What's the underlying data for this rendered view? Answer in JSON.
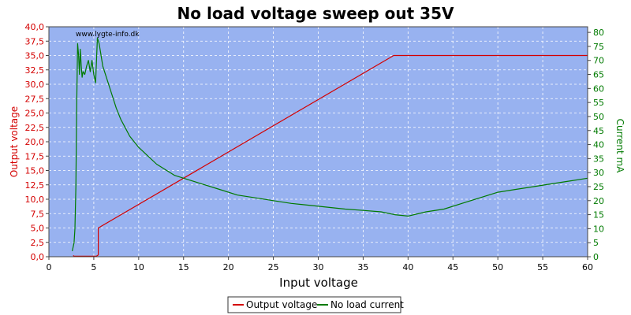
{
  "chart_data": {
    "type": "line",
    "title": "No load voltage sweep out 35V",
    "watermark": "www.lygte-info.dk",
    "xlabel": "Input voltage",
    "ylabel_left": "Output voltage",
    "ylabel_right": "Current mA",
    "xlim": [
      0,
      60
    ],
    "ylim_left": [
      0,
      40
    ],
    "ylim_right": [
      0,
      82
    ],
    "x_ticks": [
      "0",
      "5",
      "10",
      "15",
      "20",
      "25",
      "30",
      "35",
      "40",
      "45",
      "50",
      "55",
      "60"
    ],
    "y_left_ticks": [
      "0,0",
      "2,5",
      "5,0",
      "7,5",
      "10,0",
      "12,5",
      "15,0",
      "17,5",
      "20,0",
      "22,5",
      "25,0",
      "27,5",
      "30,0",
      "32,5",
      "35,0",
      "37,5",
      "40,0"
    ],
    "y_right_ticks": [
      "0",
      "5",
      "10",
      "15",
      "20",
      "25",
      "30",
      "35",
      "40",
      "45",
      "50",
      "55",
      "60",
      "65",
      "70",
      "75",
      "80"
    ],
    "grid": true,
    "legend_position": "bottom-center",
    "colors": {
      "plot_bg": "#98b2f0",
      "grid": "#ffffff",
      "voltage": "#d40000",
      "current": "#007a00",
      "left_axis": "#d40000",
      "right_axis": "#007a00"
    },
    "series": [
      {
        "name": "Output voltage",
        "axis": "left",
        "x": [
          2.7,
          2.8,
          5.3,
          5.5,
          5.5,
          38.4,
          60
        ],
        "y": [
          0.2,
          0.1,
          0.1,
          0.3,
          5.0,
          35.0,
          35.0
        ]
      },
      {
        "name": "No load current",
        "axis": "right",
        "x": [
          2.6,
          2.8,
          2.9,
          3.0,
          3.1,
          3.2,
          3.3,
          3.4,
          3.5,
          3.6,
          3.7,
          3.8,
          4.0,
          4.2,
          4.4,
          4.6,
          4.8,
          5.0,
          5.2,
          5.4,
          5.6,
          5.8,
          6.0,
          6.5,
          7.0,
          7.5,
          8.0,
          8.5,
          9.0,
          10.0,
          11.0,
          12.0,
          13.0,
          14.0,
          15.0,
          17.0,
          19.0,
          21.0,
          23.0,
          25.0,
          27.0,
          30.0,
          33.0,
          35.0,
          37.0,
          38.5,
          40.0,
          42.0,
          44.0,
          46.0,
          48.0,
          50.0,
          52.0,
          54.0,
          56.0,
          58.0,
          60.0
        ],
        "y": [
          2,
          5,
          10,
          25,
          55,
          76,
          72,
          65,
          74,
          68,
          64,
          66,
          65,
          68,
          70,
          66,
          70,
          65,
          62,
          78,
          76,
          72,
          68,
          63,
          58,
          53,
          49,
          46,
          43,
          39,
          36,
          33,
          31,
          29,
          28,
          26,
          24,
          22,
          21,
          20,
          19,
          18,
          17,
          16.5,
          16,
          15,
          14.5,
          16,
          17,
          19,
          21,
          23,
          24,
          25,
          26,
          27,
          28
        ]
      }
    ]
  },
  "legend": {
    "items": [
      {
        "label": "Output voltage",
        "color": "#d40000"
      },
      {
        "label": "No load current",
        "color": "#007a00"
      }
    ]
  }
}
